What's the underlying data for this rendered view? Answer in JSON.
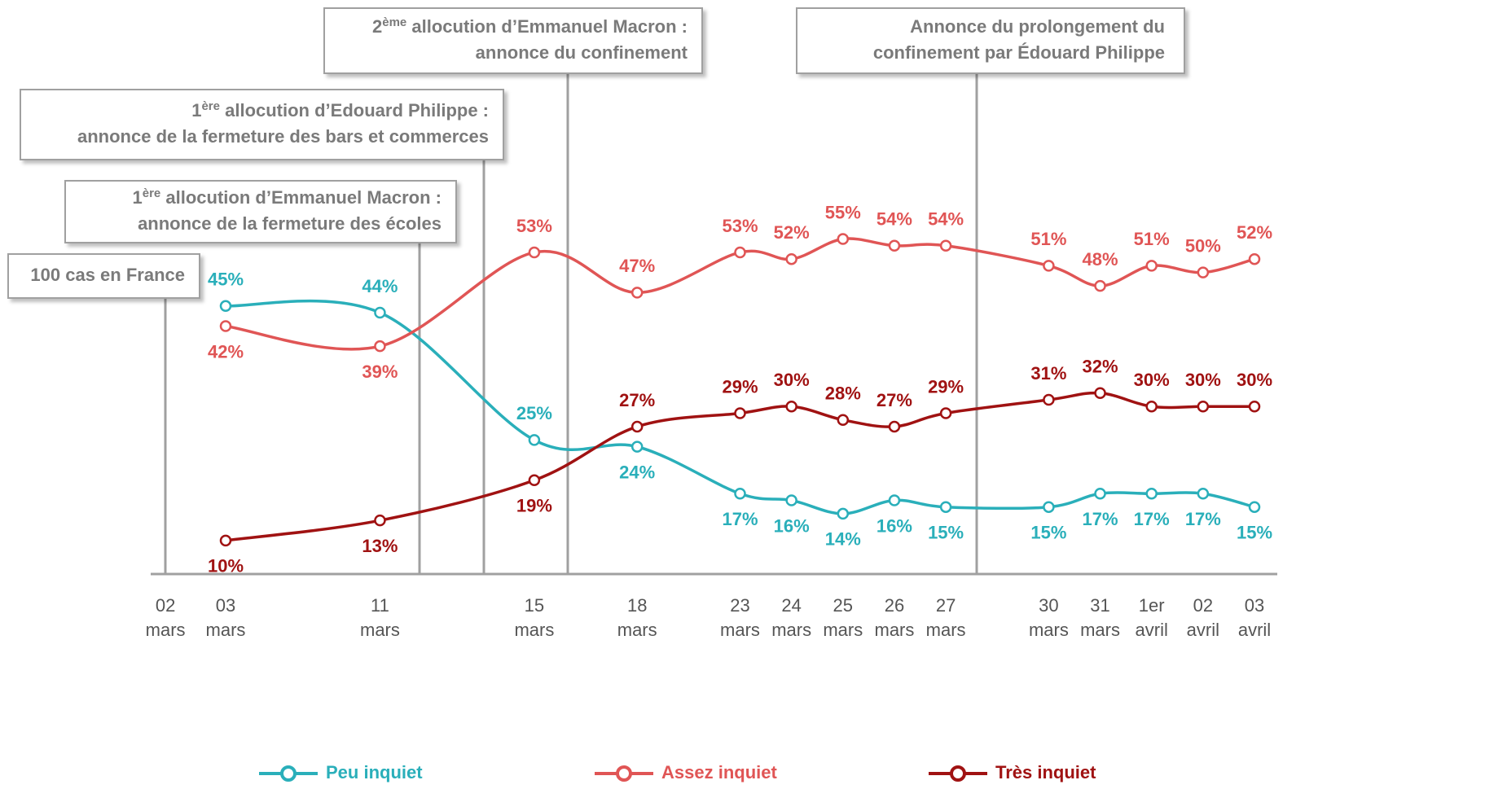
{
  "chart_data": {
    "type": "line",
    "categories": [
      "02 mars",
      "03 mars",
      "11 mars",
      "15 mars",
      "18 mars",
      "23 mars",
      "24 mars",
      "25 mars",
      "26 mars",
      "27 mars",
      "30 mars",
      "31 mars",
      "1er avril",
      "02 avril",
      "03 avril"
    ],
    "ylim": [
      5,
      55
    ],
    "series": [
      {
        "name": "Peu inquiet",
        "color": "#2aafba",
        "values": [
          null,
          45,
          44,
          25,
          24,
          17,
          16,
          14,
          16,
          15,
          15,
          17,
          17,
          17,
          15
        ],
        "value_labels": [
          null,
          "45%",
          "44%",
          "25%",
          "24%",
          "17%",
          "16%",
          "14%",
          "16%",
          "15%",
          "15%",
          "17%",
          "17%",
          "17%",
          "15%"
        ]
      },
      {
        "name": "Assez inquiet",
        "color": "#e05555",
        "values": [
          null,
          42,
          39,
          53,
          47,
          53,
          52,
          55,
          54,
          54,
          51,
          48,
          51,
          50,
          52
        ],
        "value_labels": [
          null,
          "42%",
          "39%",
          "53%",
          "47%",
          "53%",
          "52%",
          "55%",
          "54%",
          "54%",
          "51%",
          "48%",
          "51%",
          "50%",
          "52%"
        ]
      },
      {
        "name": "Très inquiet",
        "color": "#a01212",
        "values": [
          null,
          10,
          13,
          19,
          27,
          29,
          30,
          28,
          27,
          29,
          31,
          32,
          30,
          30,
          30
        ],
        "value_labels": [
          null,
          "10%",
          "13%",
          "19%",
          "27%",
          "29%",
          "30%",
          "28%",
          "27%",
          "29%",
          "31%",
          "32%",
          "30%",
          "30%",
          "30%"
        ]
      }
    ],
    "annotations": [
      {
        "lines": [
          [
            {
              "text": "100 cas en France"
            }
          ]
        ]
      },
      {
        "lines": [
          [
            {
              "text": "1"
            },
            {
              "text": "ère",
              "sup": true
            },
            {
              "text": " allocution d’Emmanuel Macron :"
            }
          ],
          [
            {
              "text": "annonce de la fermeture des écoles"
            }
          ]
        ]
      },
      {
        "lines": [
          [
            {
              "text": "1"
            },
            {
              "text": "ère",
              "sup": true
            },
            {
              "text": " allocution d’Edouard Philippe :"
            }
          ],
          [
            {
              "text": "annonce de la fermeture des bars et commerces"
            }
          ]
        ]
      },
      {
        "lines": [
          [
            {
              "text": "2"
            },
            {
              "text": "ème",
              "sup": true
            },
            {
              "text": " allocution d’Emmanuel Macron :"
            }
          ],
          [
            {
              "text": "annonce du confinement"
            }
          ]
        ]
      },
      {
        "lines": [
          [
            {
              "text": "Annonce du prolongement du"
            }
          ],
          [
            {
              "text": "confinement par Édouard Philippe"
            }
          ]
        ]
      }
    ]
  }
}
